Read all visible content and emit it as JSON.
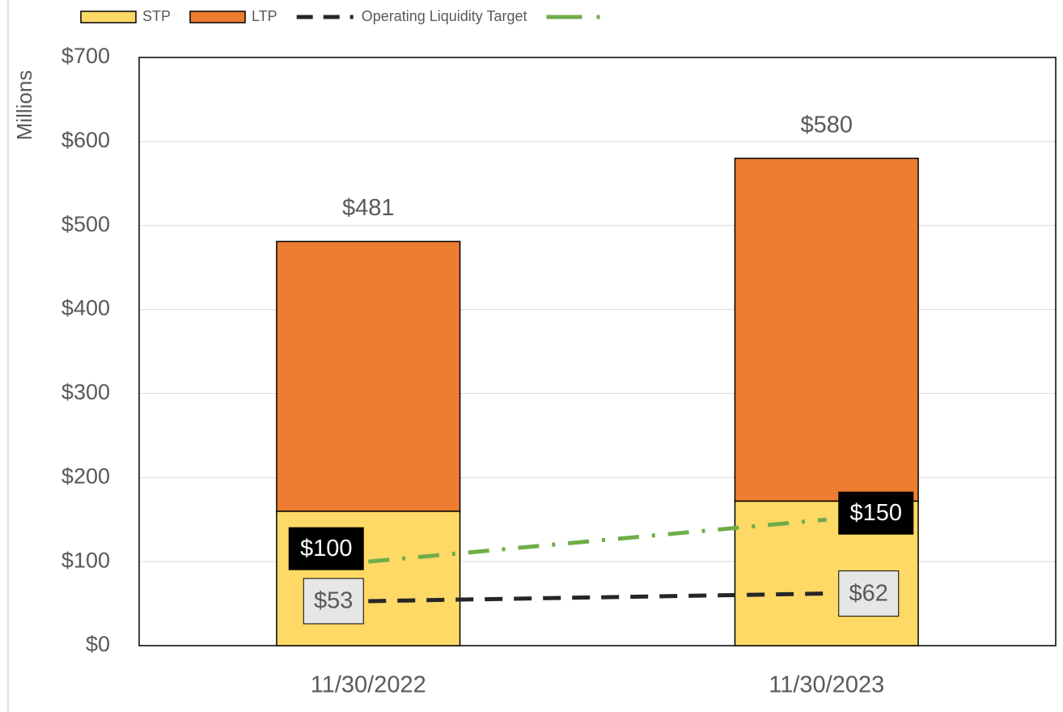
{
  "chart_data": {
    "type": "stacked-bar-line",
    "y_label": "Millions",
    "categories": [
      "11/30/2022",
      "11/30/2023"
    ],
    "series": [
      {
        "name": "STP",
        "color": "#ffd966",
        "values": [
          160,
          172
        ],
        "kind": "bar"
      },
      {
        "name": "LTP",
        "color": "#ed7d31",
        "values": [
          321,
          408
        ],
        "kind": "bar"
      },
      {
        "name": "Operating Liquidity Target",
        "color": "#262626",
        "values": [
          53,
          62
        ],
        "value_labels": [
          "$53",
          "$62"
        ],
        "kind": "line",
        "dash": "dashed"
      },
      {
        "color": "#70ad47",
        "values": [
          100,
          150
        ],
        "value_labels": [
          "$100",
          "$150"
        ],
        "kind": "line",
        "dash": "dashdot"
      }
    ],
    "totals": [
      481,
      580
    ],
    "total_labels": [
      "$481",
      "$580"
    ],
    "ylim": [
      0,
      700
    ],
    "yticks": [
      {
        "value": 0,
        "label": "$0"
      },
      {
        "value": 100,
        "label": "$100"
      },
      {
        "value": 200,
        "label": "$200"
      },
      {
        "value": 300,
        "label": "$300"
      },
      {
        "value": 400,
        "label": "$400"
      },
      {
        "value": 500,
        "label": "$500"
      },
      {
        "value": 600,
        "label": "$600"
      },
      {
        "value": 700,
        "label": "$700"
      }
    ],
    "grid": true,
    "legend": "top"
  }
}
